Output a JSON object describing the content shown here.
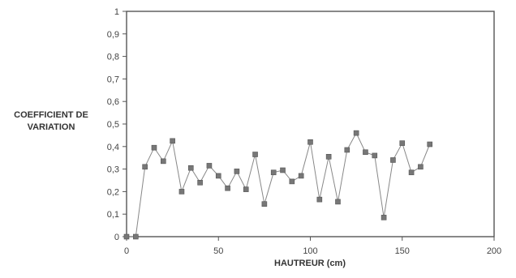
{
  "chart_data": {
    "type": "line",
    "title": "",
    "xlabel": "HAUTREUR (cm)",
    "ylabel_lines": [
      "COEFFICIENT DE",
      "VARIATION"
    ],
    "xlim": [
      0,
      200
    ],
    "ylim": [
      0,
      1
    ],
    "xticks": [
      0,
      50,
      100,
      150,
      200
    ],
    "yticks": [
      0,
      0.1,
      0.2,
      0.3,
      0.4,
      0.5,
      0.6,
      0.7,
      0.8,
      0.9,
      1
    ],
    "xtick_labels": [
      "0",
      "50",
      "100",
      "150",
      "200"
    ],
    "ytick_labels": [
      "0",
      "0,1",
      "0,2",
      "0,3",
      "0,4",
      "0,5",
      "0,6",
      "0,7",
      "0,8",
      "0,9",
      "1"
    ],
    "grid": false,
    "legend": "none",
    "series": [
      {
        "marker": "square",
        "x": [
          0,
          5,
          10,
          15,
          20,
          25,
          30,
          35,
          40,
          45,
          50,
          55,
          60,
          65,
          70,
          75,
          80,
          85,
          90,
          95,
          100,
          105,
          110,
          115,
          120,
          125,
          130,
          135,
          140,
          145,
          150,
          155,
          160,
          165
        ],
        "y": [
          0,
          0,
          0.31,
          0.395,
          0.335,
          0.425,
          0.2,
          0.305,
          0.24,
          0.315,
          0.27,
          0.215,
          0.29,
          0.21,
          0.365,
          0.145,
          0.285,
          0.295,
          0.245,
          0.27,
          0.42,
          0.165,
          0.355,
          0.155,
          0.385,
          0.46,
          0.375,
          0.36,
          0.085,
          0.34,
          0.415,
          0.285,
          0.31,
          0.41
        ]
      }
    ]
  }
}
